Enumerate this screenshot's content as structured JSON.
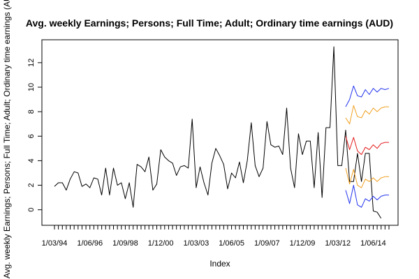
{
  "chart_data": {
    "type": "line",
    "title": "Avg. weekly Earnings; Persons; Full Time; Adult; Ordinary time earnings (AUD)",
    "xlabel": "Index",
    "ylabel": "Avg. weekly Earnings; Persons; Full Time; Adult; Ordinary time earnings (AUD)",
    "xlim": [
      1,
      86
    ],
    "ylim": [
      -0.7,
      13.3
    ],
    "x_tick_labels": [
      {
        "index": 1,
        "label": "1/03/94"
      },
      {
        "index": 10,
        "label": "1/06/96"
      },
      {
        "index": 19,
        "label": "1/09/98"
      },
      {
        "index": 28,
        "label": "1/12/00"
      },
      {
        "index": 37,
        "label": "1/03/03"
      },
      {
        "index": 46,
        "label": "1/06/05"
      },
      {
        "index": 55,
        "label": "1/09/07"
      },
      {
        "index": 64,
        "label": "1/12/09"
      },
      {
        "index": 73,
        "label": "1/03/12"
      },
      {
        "index": 82,
        "label": "1/06/14"
      }
    ],
    "y_ticks": [
      0,
      2,
      4,
      6,
      8,
      10,
      12
    ],
    "grid": false,
    "legend": "none",
    "series": [
      {
        "role": "observed",
        "color": "#000000",
        "x": [
          1,
          2,
          3,
          4,
          5,
          6,
          7,
          8,
          9,
          10,
          11,
          12,
          13,
          14,
          15,
          16,
          17,
          18,
          19,
          20,
          21,
          22,
          23,
          24,
          25,
          26,
          27,
          28,
          29,
          30,
          31,
          32,
          33,
          34,
          35,
          36,
          37,
          38,
          39,
          40,
          41,
          42,
          43,
          44,
          45,
          46,
          47,
          48,
          49,
          50,
          51,
          52,
          53,
          54,
          55,
          56,
          57,
          58,
          59,
          60,
          61,
          62,
          63,
          64,
          65,
          66,
          67,
          68,
          69,
          70,
          71,
          72,
          73,
          74,
          75,
          76,
          77,
          78,
          79,
          80,
          81,
          82,
          83,
          84,
          85,
          86
        ],
        "y": [
          1.9,
          2.2,
          2.2,
          1.6,
          2.5,
          3.1,
          3.0,
          1.9,
          2.1,
          1.8,
          2.6,
          2.5,
          1.2,
          3.4,
          1.2,
          3.4,
          2.0,
          2.2,
          0.9,
          2.2,
          0.2,
          3.7,
          3.5,
          3.1,
          4.3,
          1.6,
          2.1,
          4.9,
          4.3,
          4.0,
          3.8,
          2.8,
          3.5,
          3.6,
          3.4,
          7.4,
          1.8,
          3.5,
          2.2,
          1.2,
          3.8,
          5.0,
          4.4,
          3.7,
          1.7,
          3.0,
          2.6,
          3.9,
          2.2,
          4.0,
          7.1,
          3.6,
          2.7,
          3.4,
          7.2,
          5.3,
          5.1,
          5.2,
          4.5,
          8.3,
          3.4,
          1.8,
          6.2,
          4.5,
          5.6,
          5.6,
          1.8,
          6.3,
          1.0,
          6.7,
          6.7,
          13.3,
          3.6,
          3.6,
          6.5,
          2.3,
          2.3,
          4.6,
          2.3,
          4.6,
          4.6,
          -0.1,
          -0.2,
          -0.7,
          null,
          null
        ]
      },
      {
        "role": "forecast-mean",
        "color": "#e31a1c",
        "x": [
          75,
          76,
          77,
          78,
          79,
          80,
          81,
          82,
          83,
          84,
          85,
          86
        ],
        "y": [
          6.0,
          4.9,
          5.9,
          4.8,
          4.5,
          5.1,
          4.9,
          5.3,
          5.0,
          5.4,
          5.5,
          5.5
        ]
      },
      {
        "role": "forecast-80-upper",
        "color": "#f0a020",
        "x": [
          75,
          76,
          77,
          78,
          79,
          80,
          81,
          82,
          83,
          84,
          85,
          86
        ],
        "y": [
          7.5,
          7.0,
          8.5,
          7.6,
          7.5,
          8.1,
          7.8,
          8.3,
          8.0,
          8.3,
          8.4,
          8.4
        ]
      },
      {
        "role": "forecast-80-lower",
        "color": "#f0a020",
        "x": [
          75,
          76,
          77,
          78,
          79,
          80,
          81,
          82,
          83,
          84,
          85,
          86
        ],
        "y": [
          3.4,
          2.1,
          3.3,
          2.0,
          1.8,
          2.5,
          2.3,
          2.6,
          2.3,
          2.6,
          2.7,
          2.7
        ]
      },
      {
        "role": "forecast-95-upper",
        "color": "#2233ee",
        "x": [
          75,
          76,
          77,
          78,
          79,
          80,
          81,
          82,
          83,
          84,
          85,
          86
        ],
        "y": [
          8.4,
          9.0,
          10.1,
          9.3,
          9.2,
          9.8,
          9.4,
          9.9,
          9.6,
          9.9,
          9.8,
          9.9
        ]
      },
      {
        "role": "forecast-95-lower",
        "color": "#2233ee",
        "x": [
          75,
          76,
          77,
          78,
          79,
          80,
          81,
          82,
          83,
          84,
          85,
          86
        ],
        "y": [
          1.6,
          0.5,
          2.0,
          0.4,
          0.2,
          0.9,
          0.7,
          1.1,
          0.8,
          1.1,
          1.2,
          1.2
        ]
      }
    ]
  }
}
